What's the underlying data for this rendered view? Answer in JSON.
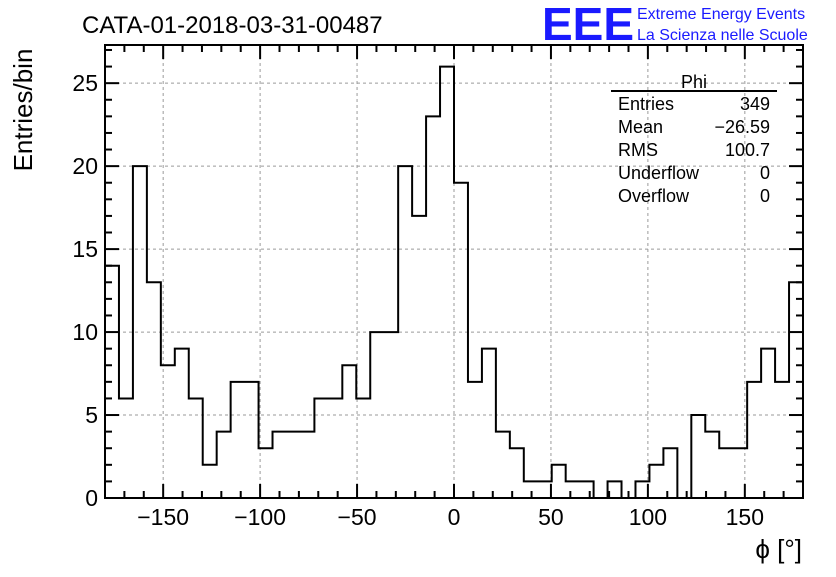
{
  "chart_data": {
    "type": "bar",
    "title": "CATA-01-2018-03-31-00487",
    "xlabel": "ϕ [°]",
    "ylabel": "Entries/bin",
    "xlim": [
      -180,
      180
    ],
    "ylim": [
      0,
      27.3
    ],
    "bin_width": 7.2,
    "grid": true,
    "x_ticks": [
      -150,
      -100,
      -50,
      0,
      50,
      100,
      150
    ],
    "y_ticks": [
      0,
      5,
      10,
      15,
      20,
      25
    ],
    "series": [
      {
        "name": "Phi",
        "values": [
          14,
          6,
          20,
          13,
          8,
          9,
          6,
          2,
          4,
          7,
          7,
          3,
          4,
          4,
          4,
          6,
          6,
          8,
          6,
          10,
          10,
          20,
          17,
          23,
          26,
          19,
          7,
          9,
          4,
          3,
          1,
          1,
          2,
          1,
          1,
          0,
          1,
          0,
          1,
          2,
          3,
          0,
          5,
          4,
          3,
          3,
          7,
          9,
          7,
          13
        ]
      }
    ]
  },
  "stats_box": {
    "title": "Phi",
    "rows": [
      {
        "label": "Entries",
        "value": "349"
      },
      {
        "label": "Mean",
        "value": "−26.59"
      },
      {
        "label": "RMS",
        "value": "100.7"
      },
      {
        "label": "Underflow",
        "value": "0"
      },
      {
        "label": "Overflow",
        "value": "0"
      }
    ]
  },
  "logo": {
    "mark": "EEE",
    "line1": "Extreme Energy Events",
    "line2": "La Scienza nelle Scuole",
    "color": "#1a1aff"
  },
  "colors": {
    "histogram": "#000000",
    "grid": "#9a9a9a",
    "frame": "#000000"
  }
}
